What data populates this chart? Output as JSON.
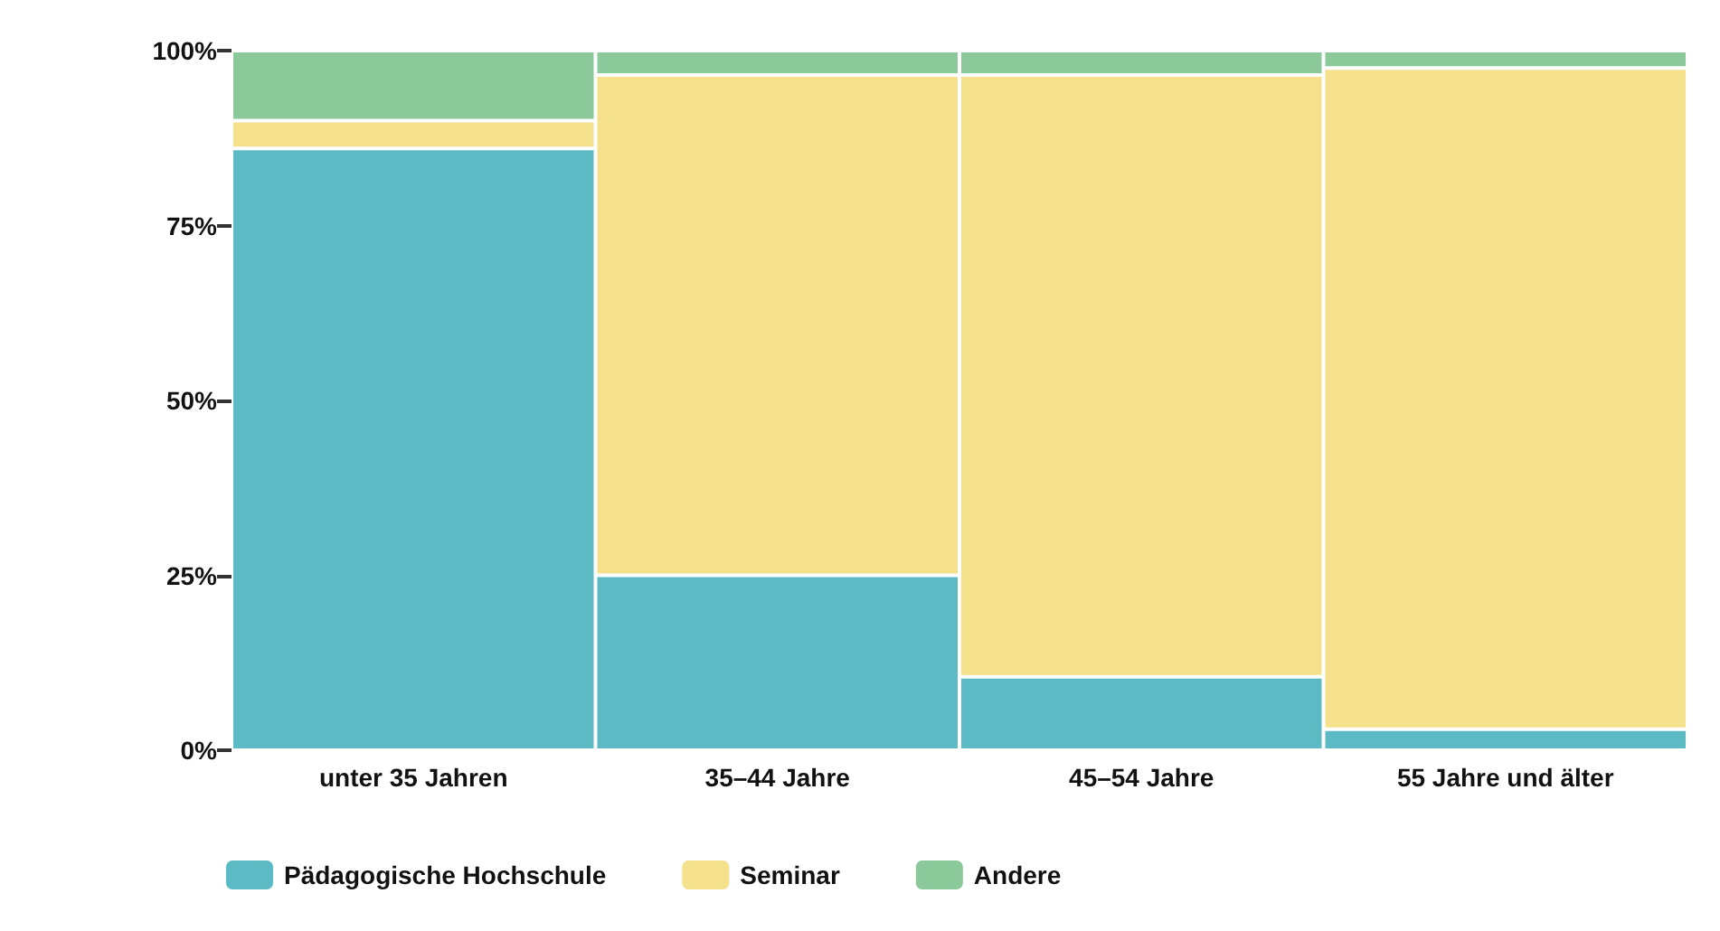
{
  "chart_data": {
    "type": "bar",
    "stacked": true,
    "categories": [
      "unter 35 Jahren",
      "35–44 Jahre",
      "45–54 Jahre",
      "55 Jahre und älter"
    ],
    "series": [
      {
        "name": "Pädagogische Hochschule",
        "color": "#5bbac4",
        "values": [
          86,
          25,
          10.5,
          3
        ]
      },
      {
        "name": "Seminar",
        "color": "#f5e08c",
        "values": [
          4,
          71.5,
          86,
          94.5
        ]
      },
      {
        "name": "Andere",
        "color": "#8cc99a",
        "values": [
          10,
          3.5,
          3.5,
          2.5
        ]
      }
    ],
    "ylim": [
      0,
      100
    ],
    "yticks": [
      {
        "value": 0,
        "label": "0%"
      },
      {
        "value": 25,
        "label": "25%"
      },
      {
        "value": 50,
        "label": "50%"
      },
      {
        "value": 75,
        "label": "75%"
      },
      {
        "value": 100,
        "label": "100%"
      }
    ],
    "legend": "bottom"
  }
}
